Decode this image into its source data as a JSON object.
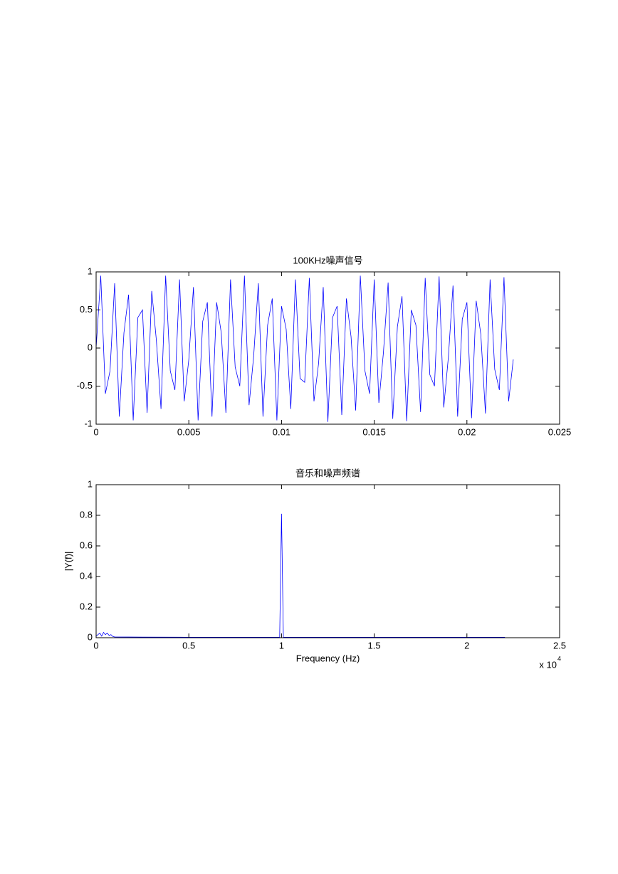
{
  "chart_data": [
    {
      "type": "line",
      "title": "100KHz噪声信号",
      "x": [
        0,
        0.00025,
        0.0005,
        0.00075,
        0.001,
        0.00125,
        0.0015,
        0.00175,
        0.002,
        0.00225,
        0.0025,
        0.00275,
        0.003,
        0.00325,
        0.0035,
        0.00375,
        0.004,
        0.00425,
        0.0045,
        0.00475,
        0.005,
        0.00525,
        0.0055,
        0.00575,
        0.006,
        0.00625,
        0.0065,
        0.00675,
        0.007,
        0.00725,
        0.0075,
        0.00775,
        0.008,
        0.00825,
        0.0085,
        0.00875,
        0.009,
        0.00925,
        0.0095,
        0.00975,
        0.01,
        0.01025,
        0.0105,
        0.01075,
        0.011,
        0.01125,
        0.0115,
        0.01175,
        0.012,
        0.01225,
        0.0125,
        0.01275,
        0.013,
        0.01325,
        0.0135,
        0.01375,
        0.014,
        0.01425,
        0.0145,
        0.01475,
        0.015,
        0.01525,
        0.0155,
        0.01575,
        0.016,
        0.01625,
        0.0165,
        0.01675,
        0.017,
        0.01725,
        0.0175,
        0.01775,
        0.018,
        0.01825,
        0.0185,
        0.01875,
        0.019,
        0.01925,
        0.0195,
        0.01975,
        0.02,
        0.02025,
        0.0205,
        0.02075,
        0.021,
        0.02125,
        0.0215,
        0.02175,
        0.022,
        0.02225,
        0.0225
      ],
      "series": [
        {
          "color": "#0000ff",
          "values": [
            0,
            0.95,
            -0.6,
            -0.3,
            0.85,
            -0.9,
            0.2,
            0.7,
            -0.95,
            0.4,
            0.5,
            -0.85,
            0.75,
            0.1,
            -0.8,
            0.95,
            -0.3,
            -0.55,
            0.9,
            -0.7,
            -0.15,
            0.8,
            -0.95,
            0.35,
            0.6,
            -0.9,
            0.6,
            0.2,
            -0.85,
            0.9,
            -0.25,
            -0.5,
            0.95,
            -0.75,
            -0.1,
            0.85,
            -0.9,
            0.3,
            0.65,
            -0.95,
            0.55,
            0.25,
            -0.8,
            0.9,
            -0.4,
            -0.45,
            0.92,
            -0.7,
            -0.2,
            0.8,
            -0.97,
            0.4,
            0.55,
            -0.88,
            0.65,
            0.15,
            -0.82,
            0.95,
            -0.3,
            -0.6,
            0.9,
            -0.72,
            -0.05,
            0.86,
            -0.93,
            0.28,
            0.68,
            -0.96,
            0.5,
            0.3,
            -0.84,
            0.92,
            -0.35,
            -0.5,
            0.94,
            -0.78,
            -0.12,
            0.82,
            -0.9,
            0.38,
            0.6,
            -0.92,
            0.62,
            0.18,
            -0.86,
            0.9,
            -0.28,
            -0.55,
            0.93,
            -0.7,
            -0.15
          ]
        }
      ],
      "xlim": [
        0,
        0.025
      ],
      "xticks": [
        0,
        0.005,
        0.01,
        0.015,
        0.02,
        0.025
      ],
      "ylim": [
        -1,
        1
      ],
      "yticks": [
        -1,
        -0.5,
        0,
        0.5,
        1
      ]
    },
    {
      "type": "line",
      "title": "音乐和噪声频谱",
      "xlabel": "Frequency (Hz)",
      "ylabel": "|Y(f)|",
      "x_multiplier": "x 10",
      "x_multiplier_exponent": "4",
      "x": [
        0,
        200,
        300,
        400,
        500,
        600,
        700,
        800,
        900,
        1000,
        2500,
        5000,
        9900,
        10000,
        10100,
        15000,
        22050
      ],
      "series": [
        {
          "color": "#0000ff",
          "values": [
            0.01,
            0.03,
            0.01,
            0.035,
            0.02,
            0.03,
            0.015,
            0.02,
            0.008,
            0.005,
            0.004,
            0.003,
            0.003,
            0.81,
            0.003,
            0.003,
            0.003
          ]
        }
      ],
      "xlim": [
        0,
        25000
      ],
      "xticks": [
        0,
        {
          "value": 5000,
          "label": "0.5"
        },
        {
          "value": 10000,
          "label": "1"
        },
        {
          "value": 15000,
          "label": "1.5"
        },
        {
          "value": 20000,
          "label": "2"
        },
        {
          "value": 25000,
          "label": "2.5"
        }
      ],
      "ylim": [
        0,
        1
      ],
      "yticks": [
        0,
        0.2,
        0.4,
        0.6,
        0.8,
        1
      ]
    }
  ]
}
